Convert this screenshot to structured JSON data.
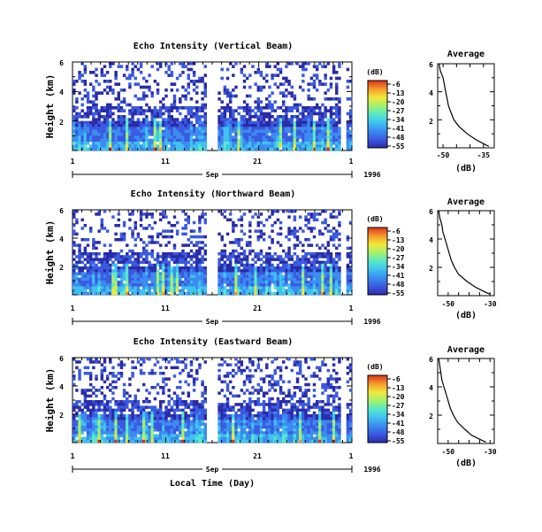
{
  "chart_data": [
    {
      "type": "heatmap",
      "title": "Echo Intensity (Vertical Beam)",
      "ylabel": "Height (km)",
      "y_ticks": [
        "6",
        "4",
        "2"
      ],
      "ylim": [
        0,
        6
      ],
      "x_ticks": [
        "1",
        "11",
        "21",
        "1"
      ],
      "month_label": "Sep",
      "year_label": "1996",
      "xlabel": "",
      "colorbar": {
        "unit": "(dB)",
        "ticks": [
          "-6",
          "-13",
          "-20",
          "-27",
          "-34",
          "-41",
          "-48",
          "-55"
        ]
      },
      "profile": {
        "title": "Average",
        "xlabel": "(dB)",
        "x_ticks": [
          "-50",
          "-35"
        ],
        "xlim": [
          -52,
          -31
        ],
        "y_ticks": [
          "6",
          "4",
          "2"
        ],
        "heights": [
          0.1,
          0.3,
          0.6,
          1.0,
          1.5,
          2.0,
          2.5,
          3.0,
          3.5,
          4.0,
          4.5,
          5.0,
          5.5,
          6.0
        ],
        "values": [
          -33,
          -35,
          -38,
          -41,
          -44,
          -46,
          -47,
          -48,
          -48.5,
          -49,
          -49.5,
          -50,
          -51,
          -51.5
        ]
      }
    },
    {
      "type": "heatmap",
      "title": "Echo Intensity (Northward Beam)",
      "ylabel": "Height (km)",
      "y_ticks": [
        "6",
        "4",
        "2"
      ],
      "ylim": [
        0,
        6
      ],
      "x_ticks": [
        "1",
        "11",
        "21",
        "1"
      ],
      "month_label": "Sep",
      "year_label": "1996",
      "xlabel": "",
      "colorbar": {
        "unit": "(dB)",
        "ticks": [
          "-6",
          "-13",
          "-20",
          "-27",
          "-34",
          "-41",
          "-48",
          "-55"
        ]
      },
      "profile": {
        "title": "Average",
        "xlabel": "(dB)",
        "x_ticks": [
          "-50",
          "-30"
        ],
        "xlim": [
          -55,
          -28
        ],
        "y_ticks": [
          "6",
          "4",
          "2"
        ],
        "heights": [
          0.1,
          0.3,
          0.6,
          1.0,
          1.5,
          2.0,
          2.5,
          3.0,
          3.5,
          4.0,
          4.5,
          5.0,
          5.5,
          6.0
        ],
        "values": [
          -30,
          -33,
          -37,
          -41,
          -45,
          -47,
          -48.5,
          -49.5,
          -50.5,
          -51.5,
          -52.5,
          -53,
          -54,
          -54.5
        ]
      }
    },
    {
      "type": "heatmap",
      "title": "Echo Intensity (Eastward Beam)",
      "ylabel": "Height (km)",
      "y_ticks": [
        "6",
        "4",
        "2"
      ],
      "ylim": [
        0,
        6
      ],
      "x_ticks": [
        "1",
        "11",
        "21",
        "1"
      ],
      "month_label": "Sep",
      "year_label": "1996",
      "xlabel": "Local Time (Day)",
      "colorbar": {
        "unit": "(dB)",
        "ticks": [
          "-6",
          "-13",
          "-20",
          "-27",
          "-34",
          "-41",
          "-48",
          "-55"
        ]
      },
      "profile": {
        "title": "Average",
        "xlabel": "(dB)",
        "x_ticks": [
          "-50",
          "-30"
        ],
        "xlim": [
          -55,
          -28
        ],
        "y_ticks": [
          "6",
          "4",
          "2"
        ],
        "heights": [
          0.1,
          0.3,
          0.6,
          1.0,
          1.5,
          2.0,
          2.5,
          3.0,
          3.5,
          4.0,
          4.5,
          5.0,
          5.5,
          6.0
        ],
        "values": [
          -32,
          -35,
          -39,
          -42,
          -45.5,
          -47.5,
          -49,
          -50,
          -51,
          -52,
          -53,
          -53.5,
          -54,
          -54.5
        ]
      }
    }
  ],
  "colors": {
    "colormap": [
      "#2a2ba8",
      "#3a5ae0",
      "#3a8cf0",
      "#3fc2f0",
      "#58e8c8",
      "#a6f06a",
      "#f2e83c",
      "#f59a2c",
      "#e0301e"
    ]
  }
}
